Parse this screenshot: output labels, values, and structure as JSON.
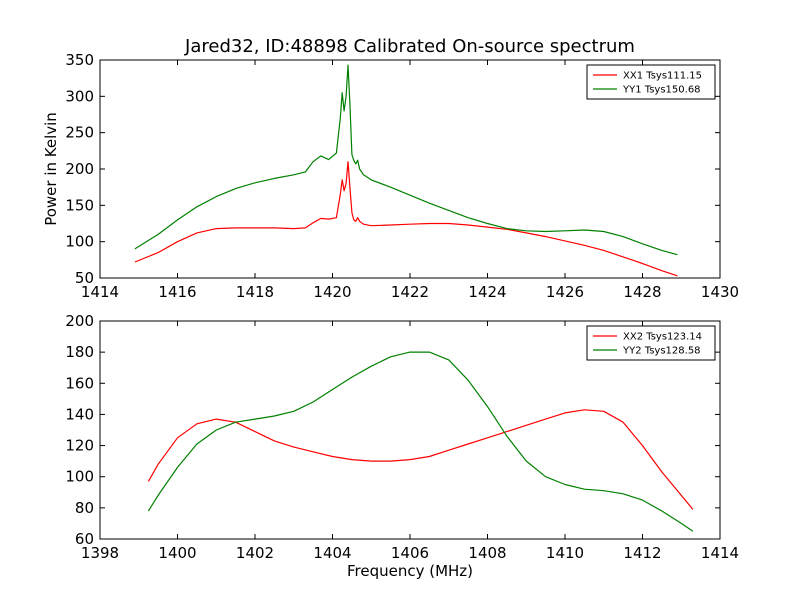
{
  "figure": {
    "title": "Jared32, ID:48898 Calibrated On-source spectrum",
    "ylabel": "Power in Kelvin",
    "xlabel": "Frequency (MHz)"
  },
  "chart_data": [
    {
      "type": "line",
      "xlim": [
        1414,
        1430
      ],
      "ylim": [
        50,
        350
      ],
      "xticks": [
        "1414",
        "1416",
        "1418",
        "1420",
        "1422",
        "1424",
        "1426",
        "1428",
        "1430"
      ],
      "yticks": [
        "50",
        "100",
        "150",
        "200",
        "250",
        "300",
        "350"
      ],
      "legend_position": "top-right",
      "series": [
        {
          "name": "XX1 Tsys111.15",
          "color": "#ff0000",
          "x": [
            1414.9,
            1415.5,
            1416.0,
            1416.5,
            1417.0,
            1417.5,
            1418.0,
            1418.5,
            1419.0,
            1419.3,
            1419.5,
            1419.7,
            1419.9,
            1420.1,
            1420.2,
            1420.25,
            1420.3,
            1420.35,
            1420.4,
            1420.45,
            1420.5,
            1420.55,
            1420.6,
            1420.65,
            1420.7,
            1420.8,
            1421.0,
            1421.5,
            1422.0,
            1422.5,
            1423.0,
            1423.5,
            1424.0,
            1424.5,
            1425.0,
            1425.5,
            1426.0,
            1426.5,
            1427.0,
            1427.5,
            1428.0,
            1428.5,
            1428.9
          ],
          "y": [
            72,
            85,
            100,
            112,
            118,
            119,
            119,
            119,
            118,
            119,
            126,
            132,
            131,
            133,
            165,
            185,
            170,
            180,
            210,
            175,
            140,
            130,
            128,
            133,
            128,
            124,
            122,
            123,
            124,
            125,
            125,
            123,
            120,
            117,
            112,
            107,
            101,
            95,
            88,
            79,
            70,
            60,
            53
          ]
        },
        {
          "name": "YY1 Tsys150.68",
          "color": "#008000",
          "x": [
            1414.9,
            1415.5,
            1416.0,
            1416.5,
            1417.0,
            1417.5,
            1418.0,
            1418.5,
            1419.0,
            1419.3,
            1419.5,
            1419.7,
            1419.9,
            1420.1,
            1420.2,
            1420.25,
            1420.3,
            1420.35,
            1420.4,
            1420.45,
            1420.5,
            1420.55,
            1420.6,
            1420.65,
            1420.7,
            1420.8,
            1421.0,
            1421.5,
            1422.0,
            1422.5,
            1423.0,
            1423.5,
            1424.0,
            1424.5,
            1425.0,
            1425.5,
            1426.0,
            1426.5,
            1427.0,
            1427.5,
            1428.0,
            1428.5,
            1428.9
          ],
          "y": [
            90,
            110,
            130,
            148,
            162,
            173,
            181,
            187,
            192,
            196,
            210,
            218,
            213,
            222,
            270,
            305,
            280,
            300,
            343,
            290,
            220,
            212,
            207,
            212,
            200,
            192,
            185,
            175,
            164,
            153,
            143,
            133,
            125,
            118,
            115,
            114,
            115,
            116,
            114,
            107,
            97,
            88,
            82
          ]
        }
      ]
    },
    {
      "type": "line",
      "xlim": [
        1398,
        1414
      ],
      "ylim": [
        60,
        200
      ],
      "xticks": [
        "1398",
        "1400",
        "1402",
        "1404",
        "1406",
        "1408",
        "1410",
        "1412",
        "1414"
      ],
      "yticks": [
        "60",
        "80",
        "100",
        "120",
        "140",
        "160",
        "180",
        "200"
      ],
      "legend_position": "top-right",
      "series": [
        {
          "name": "XX2 Tsys123.14",
          "color": "#ff0000",
          "x": [
            1399.25,
            1399.5,
            1400.0,
            1400.5,
            1401.0,
            1401.5,
            1402.0,
            1402.5,
            1403.0,
            1403.5,
            1404.0,
            1404.5,
            1405.0,
            1405.5,
            1406.0,
            1406.5,
            1407.0,
            1407.5,
            1408.0,
            1408.5,
            1409.0,
            1409.5,
            1410.0,
            1410.5,
            1411.0,
            1411.5,
            1412.0,
            1412.5,
            1413.0,
            1413.3
          ],
          "y": [
            97,
            108,
            125,
            134,
            137,
            135,
            129,
            123,
            119,
            116,
            113,
            111,
            110,
            110,
            111,
            113,
            117,
            121,
            125,
            129,
            133,
            137,
            141,
            143,
            142,
            135,
            120,
            103,
            88,
            79
          ]
        },
        {
          "name": "YY2 Tsys128.58",
          "color": "#008000",
          "x": [
            1399.25,
            1399.5,
            1400.0,
            1400.5,
            1401.0,
            1401.5,
            1402.0,
            1402.5,
            1403.0,
            1403.5,
            1404.0,
            1404.5,
            1405.0,
            1405.5,
            1406.0,
            1406.5,
            1407.0,
            1407.5,
            1408.0,
            1408.5,
            1409.0,
            1409.5,
            1410.0,
            1410.5,
            1411.0,
            1411.5,
            1412.0,
            1412.5,
            1413.0,
            1413.3
          ],
          "y": [
            78,
            88,
            106,
            121,
            130,
            135,
            137,
            139,
            142,
            148,
            156,
            164,
            171,
            177,
            180,
            180,
            175,
            162,
            145,
            126,
            110,
            100,
            95,
            92,
            91,
            89,
            85,
            78,
            70,
            65
          ]
        }
      ]
    }
  ]
}
